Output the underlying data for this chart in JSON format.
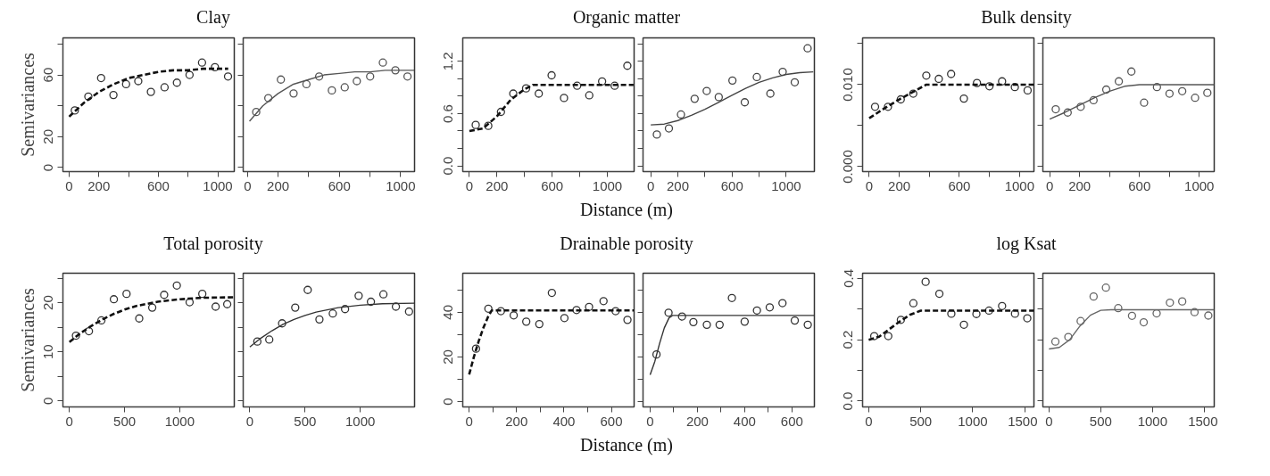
{
  "chart_data": [
    {
      "type": "scatter",
      "title": "Clay",
      "ylabel": "Semivariances",
      "xlim": [
        -42,
        1111
      ],
      "ylim": [
        -2.6,
        84
      ],
      "xticks": [
        0,
        200,
        {
          "value": 400,
          "label": null
        },
        600,
        {
          "value": 800,
          "label": null
        },
        1000
      ],
      "yticks": [
        0,
        20,
        {
          "value": 40,
          "label": null
        },
        60,
        {
          "value": 80,
          "label": null
        }
      ],
      "series": [
        {
          "type": "scatter",
          "marker": "circle",
          "color": "#333333",
          "x": [
            38,
            129,
            215,
            298,
            383,
            465,
            550,
            642,
            725,
            810,
            894,
            981,
            1069
          ],
          "values": [
            37,
            46,
            58,
            47,
            54,
            56,
            49,
            52,
            55,
            60,
            68,
            65,
            59
          ]
        },
        {
          "type": "line",
          "line_style": "dashed",
          "color": "#111111",
          "x": [
            0,
            100,
            200,
            300,
            400,
            500,
            600,
            700,
            800,
            900,
            1000,
            1070
          ],
          "values": [
            33,
            42,
            49,
            54,
            58,
            60,
            62,
            63,
            63,
            64,
            64,
            64
          ]
        }
      ]
    },
    {
      "type": "scatter",
      "tick_labels": "x",
      "xlim": [
        -28,
        1091
      ],
      "ylim": [
        -2.6,
        84
      ],
      "xticks": [
        0,
        200,
        {
          "value": 400,
          "label": null
        },
        600,
        {
          "value": 800,
          "label": null
        },
        1000
      ],
      "yticks": [
        {
          "value": 0,
          "label": null
        },
        {
          "value": 20,
          "label": null
        },
        {
          "value": 40,
          "label": null
        },
        {
          "value": 60,
          "label": null
        },
        {
          "value": 80,
          "label": null
        }
      ],
      "series": [
        {
          "type": "scatter",
          "marker": "circle",
          "color": "#555555",
          "x": [
            57,
            136,
            218,
            301,
            385,
            468,
            551,
            635,
            714,
            801,
            884,
            966,
            1045
          ],
          "values": [
            36,
            45,
            57,
            48,
            54,
            59,
            50,
            52,
            56,
            59,
            68,
            63,
            59
          ]
        },
        {
          "type": "line",
          "line_style": "solid",
          "color": "#555555",
          "x": [
            13,
            100,
            200,
            300,
            400,
            500,
            600,
            700,
            800,
            900,
            1000,
            1090
          ],
          "values": [
            30,
            40,
            48,
            54,
            57,
            60,
            61,
            62,
            62,
            63,
            63,
            63
          ]
        }
      ]
    },
    {
      "type": "scatter",
      "title": "Organic matter",
      "xlabel": "Distance (m)",
      "xlim": [
        -48,
        1194
      ],
      "ylim": [
        -0.066,
        1.47
      ],
      "xticks": [
        0,
        200,
        {
          "value": 400,
          "label": null
        },
        600,
        {
          "value": 800,
          "label": null
        },
        1000
      ],
      "yticks": [
        {
          "value": 0,
          "label": "0.0"
        },
        {
          "value": 0.2,
          "label": null
        },
        {
          "value": 0.4,
          "label": null
        },
        {
          "value": 0.6,
          "label": "0.6"
        },
        {
          "value": 0.8,
          "label": null
        },
        {
          "value": 1.0,
          "label": null
        },
        {
          "value": 1.2,
          "label": "1.2"
        }
      ],
      "series": [
        {
          "type": "scatter",
          "marker": "circle",
          "color": "#333333",
          "x": [
            46,
            137,
            229,
            318,
            411,
            503,
            596,
            686,
            781,
            869,
            962,
            1053,
            1145
          ],
          "values": [
            0.47,
            0.46,
            0.62,
            0.83,
            0.89,
            0.83,
            1.04,
            0.78,
            0.92,
            0.81,
            0.97,
            0.92,
            1.15
          ]
        },
        {
          "type": "line",
          "line_style": "dashed",
          "color": "#111111",
          "x": [
            0,
            100,
            200,
            300,
            400,
            460,
            1190
          ],
          "values": [
            0.4,
            0.43,
            0.57,
            0.76,
            0.88,
            0.93,
            0.93
          ]
        }
      ]
    },
    {
      "type": "scatter",
      "tick_labels": "x",
      "xlim": [
        -57,
        1208
      ],
      "ylim": [
        -0.066,
        1.47
      ],
      "xticks": [
        0,
        200,
        {
          "value": 400,
          "label": null
        },
        600,
        {
          "value": 800,
          "label": null
        },
        1000
      ],
      "yticks": [
        {
          "value": 0,
          "label": null
        },
        {
          "value": 0.2,
          "label": null
        },
        {
          "value": 0.4,
          "label": null
        },
        {
          "value": 0.6,
          "label": null
        },
        {
          "value": 0.8,
          "label": null
        },
        {
          "value": 1.0,
          "label": null
        },
        {
          "value": 1.2,
          "label": null
        },
        {
          "value": 1.4,
          "label": null
        }
      ],
      "series": [
        {
          "type": "scatter",
          "marker": "circle",
          "color": "#444444",
          "x": [
            45,
            134,
            223,
            324,
            413,
            502,
            603,
            694,
            783,
            883,
            974,
            1063,
            1158
          ],
          "values": [
            0.36,
            0.43,
            0.59,
            0.77,
            0.86,
            0.79,
            0.98,
            0.73,
            1.02,
            0.83,
            1.08,
            0.96,
            1.35
          ]
        },
        {
          "type": "line",
          "line_style": "solid",
          "color": "#444444",
          "x": [
            0,
            100,
            200,
            300,
            400,
            500,
            600,
            700,
            800,
            900,
            1000,
            1100,
            1200
          ],
          "values": [
            0.47,
            0.48,
            0.52,
            0.58,
            0.65,
            0.73,
            0.81,
            0.89,
            0.96,
            1.01,
            1.05,
            1.07,
            1.08
          ]
        }
      ]
    },
    {
      "type": "scatter",
      "title": "Bulk density",
      "xlim": [
        -44,
        1096
      ],
      "ylim": [
        -0.0006,
        0.0157
      ],
      "xticks": [
        0,
        200,
        {
          "value": 400,
          "label": null
        },
        600,
        {
          "value": 800,
          "label": null
        },
        1000
      ],
      "yticks": [
        {
          "value": 0,
          "label": "0.000"
        },
        {
          "value": 0.005,
          "label": null
        },
        {
          "value": 0.01,
          "label": "0.010"
        },
        {
          "value": 0.015,
          "label": null
        }
      ],
      "series": [
        {
          "type": "scatter",
          "marker": "circle",
          "color": "#333333",
          "x": [
            39,
            125,
            210,
            293,
            380,
            463,
            545,
            630,
            717,
            800,
            884,
            969,
            1054
          ],
          "values": [
            0.0073,
            0.0073,
            0.0082,
            0.0089,
            0.0111,
            0.0107,
            0.0113,
            0.0083,
            0.0102,
            0.0098,
            0.0104,
            0.0097,
            0.0093
          ]
        },
        {
          "type": "line",
          "line_style": "dashed",
          "color": "#111111",
          "x": [
            0,
            100,
            200,
            300,
            380,
            1096
          ],
          "values": [
            0.0059,
            0.0071,
            0.0082,
            0.0092,
            0.01,
            0.01
          ]
        }
      ]
    },
    {
      "type": "scatter",
      "tick_labels": "x",
      "xlim": [
        -46,
        1100
      ],
      "ylim": [
        -0.0006,
        0.0157
      ],
      "xticks": [
        0,
        200,
        {
          "value": 400,
          "label": null
        },
        600,
        {
          "value": 800,
          "label": null
        },
        1000
      ],
      "yticks": [
        {
          "value": 0,
          "label": null
        },
        {
          "value": 0.005,
          "label": null
        },
        {
          "value": 0.01,
          "label": null
        },
        {
          "value": 0.015,
          "label": null
        }
      ],
      "series": [
        {
          "type": "scatter",
          "marker": "circle",
          "color": "#555555",
          "x": [
            40,
            120,
            207,
            293,
            378,
            462,
            546,
            631,
            717,
            801,
            886,
            972,
            1054
          ],
          "values": [
            0.007,
            0.0066,
            0.0073,
            0.0081,
            0.0094,
            0.0104,
            0.0116,
            0.0078,
            0.0097,
            0.0089,
            0.0092,
            0.0084,
            0.009
          ]
        },
        {
          "type": "line",
          "line_style": "solid",
          "color": "#555555",
          "x": [
            0,
            100,
            200,
            300,
            400,
            500,
            600,
            1100
          ],
          "values": [
            0.0058,
            0.0066,
            0.0075,
            0.0084,
            0.0092,
            0.0098,
            0.01,
            0.01
          ]
        }
      ]
    },
    {
      "type": "scatter",
      "title": "Total porosity",
      "ylabel": "Semivariances",
      "xlim": [
        -59,
        1495
      ],
      "ylim": [
        -1.2,
        26
      ],
      "xticks": [
        0,
        500,
        1000
      ],
      "yticks": [
        0,
        {
          "value": 5,
          "label": null
        },
        10,
        {
          "value": 15,
          "label": null
        },
        20,
        {
          "value": 25,
          "label": null
        }
      ],
      "series": [
        {
          "type": "scatter",
          "marker": "circle",
          "color": "#333333",
          "x": [
            59,
            177,
            290,
            403,
            518,
            633,
            751,
            859,
            974,
            1090,
            1205,
            1326,
            1431
          ],
          "values": [
            13.3,
            14.2,
            16.4,
            20.7,
            21.8,
            16.8,
            19.0,
            21.6,
            23.5,
            20.1,
            21.8,
            19.2,
            19.7
          ]
        },
        {
          "type": "line",
          "line_style": "dashed",
          "color": "#111111",
          "x": [
            0,
            100,
            200,
            300,
            400,
            500,
            600,
            800,
            1000,
            1200,
            1490
          ],
          "values": [
            12.0,
            13.8,
            15.3,
            16.6,
            17.7,
            18.6,
            19.3,
            20.2,
            20.7,
            21.0,
            21.1
          ]
        }
      ]
    },
    {
      "type": "scatter",
      "tick_labels": "x",
      "xlim": [
        -60,
        1491
      ],
      "ylim": [
        -1.2,
        26
      ],
      "xticks": [
        0,
        500,
        1000
      ],
      "yticks": [
        {
          "value": 0,
          "label": null
        },
        {
          "value": 5,
          "label": null
        },
        {
          "value": 10,
          "label": null
        },
        {
          "value": 15,
          "label": null
        },
        {
          "value": 20,
          "label": null
        },
        {
          "value": 25,
          "label": null
        }
      ],
      "series": [
        {
          "type": "scatter",
          "marker": "circle",
          "color": "#333333",
          "x": [
            68,
            176,
            292,
            411,
            524,
            630,
            751,
            862,
            985,
            1096,
            1209,
            1322,
            1441
          ],
          "values": [
            12.1,
            12.5,
            15.8,
            19.0,
            22.6,
            16.6,
            17.8,
            18.7,
            21.4,
            20.2,
            21.7,
            19.2,
            18.2
          ]
        },
        {
          "type": "line",
          "line_style": "solid",
          "color": "#333333",
          "x": [
            0,
            100,
            200,
            300,
            400,
            500,
            600,
            800,
            1000,
            1200,
            1490
          ],
          "values": [
            11.0,
            12.8,
            14.3,
            15.6,
            16.6,
            17.4,
            18.1,
            19.0,
            19.5,
            19.8,
            19.9
          ]
        }
      ]
    },
    {
      "type": "scatter",
      "title": "Drainable porosity",
      "xlabel": "Distance (m)",
      "xlim": [
        -27,
        696
      ],
      "ylim": [
        -2.4,
        57.5
      ],
      "xticks": [
        0,
        {
          "value": 100,
          "label": null
        },
        200,
        {
          "value": 300,
          "label": null
        },
        400,
        {
          "value": 500,
          "label": null
        },
        600
      ],
      "yticks": [
        0,
        {
          "value": 10,
          "label": null
        },
        20,
        {
          "value": 30,
          "label": null
        },
        40,
        {
          "value": 50,
          "label": null
        }
      ],
      "series": [
        {
          "type": "scatter",
          "marker": "circle",
          "color": "#333333",
          "x": [
            29,
            81,
            134,
            188,
            241,
            296,
            349,
            402,
            453,
            506,
            567,
            618,
            668
          ],
          "values": [
            23.7,
            41.6,
            40.5,
            38.6,
            35.8,
            34.7,
            48.7,
            37.4,
            41.0,
            42.4,
            45.0,
            40.5,
            36.6
          ]
        },
        {
          "type": "line",
          "line_style": "dashed",
          "color": "#111111",
          "x": [
            0,
            20,
            40,
            60,
            80,
            95,
            696
          ],
          "values": [
            12.1,
            20,
            27,
            33,
            38,
            40.8,
            40.8
          ]
        }
      ]
    },
    {
      "type": "scatter",
      "tick_labels": "x",
      "xlim": [
        -30,
        695
      ],
      "ylim": [
        -2.4,
        57.5
      ],
      "xticks": [
        0,
        {
          "value": 100,
          "label": null
        },
        200,
        {
          "value": 300,
          "label": null
        },
        400,
        {
          "value": 500,
          "label": null
        },
        600
      ],
      "yticks": [
        {
          "value": 0,
          "label": null
        },
        {
          "value": 10,
          "label": null
        },
        {
          "value": 20,
          "label": null
        },
        {
          "value": 30,
          "label": null
        },
        {
          "value": 40,
          "label": null
        },
        {
          "value": 50,
          "label": null
        }
      ],
      "series": [
        {
          "type": "scatter",
          "marker": "circle",
          "color": "#333333",
          "x": [
            27,
            78,
            135,
            183,
            240,
            294,
            346,
            400,
            452,
            506,
            560,
            612,
            667
          ],
          "values": [
            21.1,
            39.8,
            38.1,
            35.6,
            34.4,
            34.4,
            46.4,
            35.8,
            40.8,
            42.2,
            44.1,
            36.3,
            34.4
          ]
        },
        {
          "type": "line",
          "line_style": "solid",
          "color": "#333333",
          "x": [
            0,
            20,
            40,
            60,
            80,
            95,
            695
          ],
          "values": [
            12,
            18,
            26,
            33,
            37.5,
            38.6,
            38.6
          ]
        }
      ]
    },
    {
      "type": "scatter",
      "title": "log Ksat",
      "xlim": [
        -59,
        1588
      ],
      "ylim": [
        -0.019,
        0.417
      ],
      "xticks": [
        0,
        500,
        1000,
        1500
      ],
      "yticks": [
        {
          "value": 0,
          "label": "0.0"
        },
        {
          "value": 0.1,
          "label": null
        },
        {
          "value": 0.2,
          "label": "0.2"
        },
        {
          "value": 0.3,
          "label": null
        },
        {
          "value": 0.4,
          "label": "0.4"
        }
      ],
      "series": [
        {
          "type": "scatter",
          "marker": "circle",
          "color": "#333333",
          "x": [
            53,
            188,
            309,
            429,
            547,
            679,
            794,
            915,
            1035,
            1156,
            1282,
            1406,
            1524
          ],
          "values": [
            0.212,
            0.212,
            0.265,
            0.319,
            0.389,
            0.35,
            0.285,
            0.249,
            0.284,
            0.295,
            0.31,
            0.285,
            0.27
          ]
        },
        {
          "type": "line",
          "line_style": "dashed",
          "color": "#111111",
          "x": [
            0,
            100,
            200,
            300,
            400,
            500,
            1588
          ],
          "values": [
            0.2,
            0.21,
            0.235,
            0.26,
            0.282,
            0.295,
            0.295
          ]
        }
      ]
    },
    {
      "type": "scatter",
      "tick_labels": "x",
      "xlim": [
        -59,
        1596
      ],
      "ylim": [
        -0.019,
        0.417
      ],
      "xticks": [
        0,
        500,
        1000,
        1500
      ],
      "yticks": [
        {
          "value": 0,
          "label": null
        },
        {
          "value": 0.1,
          "label": null
        },
        {
          "value": 0.2,
          "label": null
        },
        {
          "value": 0.3,
          "label": null
        },
        {
          "value": 0.4,
          "label": null
        }
      ],
      "series": [
        {
          "type": "scatter",
          "marker": "circle",
          "color": "#666666",
          "x": [
            62,
            187,
            306,
            431,
            550,
            669,
            802,
            915,
            1040,
            1168,
            1287,
            1406,
            1539
          ],
          "values": [
            0.194,
            0.209,
            0.261,
            0.341,
            0.37,
            0.303,
            0.278,
            0.257,
            0.286,
            0.321,
            0.325,
            0.29,
            0.279
          ]
        },
        {
          "type": "line",
          "line_style": "solid",
          "color": "#666666",
          "x": [
            0,
            100,
            200,
            300,
            400,
            500,
            600,
            1596
          ],
          "values": [
            0.17,
            0.175,
            0.2,
            0.245,
            0.28,
            0.296,
            0.298,
            0.298
          ]
        }
      ]
    }
  ]
}
